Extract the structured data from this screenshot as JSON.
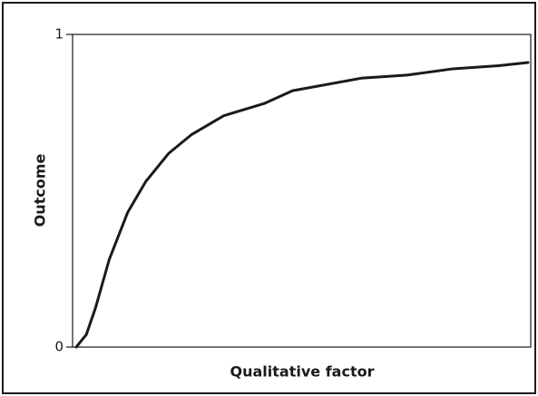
{
  "chart_data": {
    "type": "line",
    "x_label": "Qualitative factor",
    "y_label": "Outcome",
    "x": [
      0.8,
      3,
      5,
      8,
      12,
      16,
      21,
      26,
      33,
      42,
      48,
      63,
      73,
      83,
      93,
      99.4
    ],
    "series": [
      {
        "color": "#1a1a1a",
        "values": [
          0,
          0.04,
          0.125,
          0.28,
          0.43,
          0.53,
          0.62,
          0.68,
          0.74,
          0.78,
          0.82,
          0.86,
          0.87,
          0.89,
          0.9,
          0.91
        ]
      }
    ],
    "xlim": [
      0,
      100
    ],
    "ylim": [
      0,
      1
    ],
    "yticks": [
      0,
      1
    ],
    "grid": false
  }
}
